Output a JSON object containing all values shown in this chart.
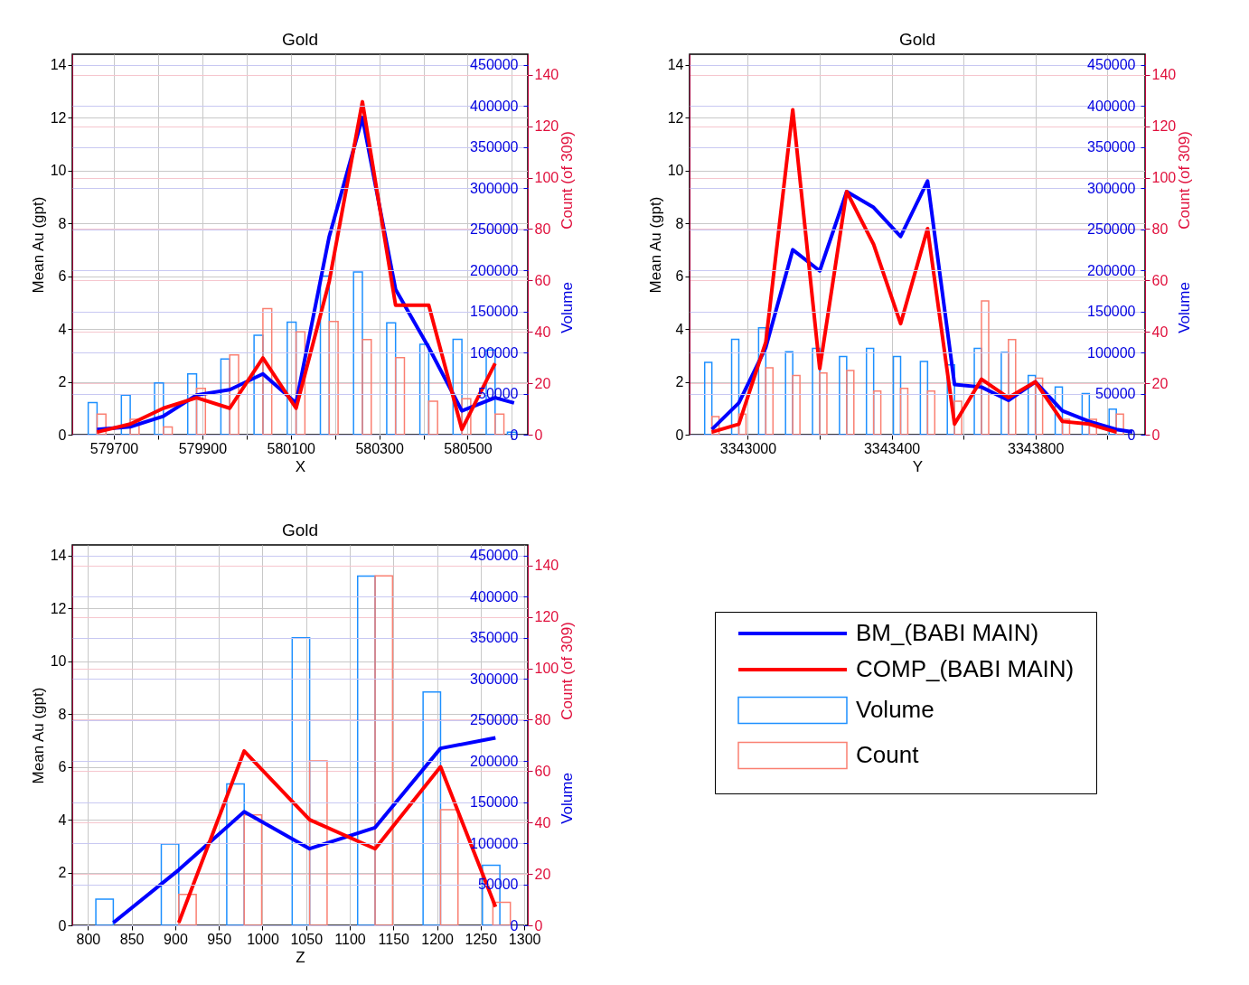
{
  "chart_data": [
    {
      "type": "line",
      "title": "Gold",
      "xlabel": "X",
      "ylabel": "Mean Au (gpt)",
      "y2label": "Volume",
      "y3label": "Count (of 309)",
      "xlim": [
        579606,
        580636
      ],
      "xticks": [
        579700,
        {
          "value": 579800,
          "label": null
        },
        579900,
        {
          "value": 580000,
          "label": null
        },
        580100,
        {
          "value": 580200,
          "label": null
        },
        580300,
        {
          "value": 580400,
          "label": null
        },
        580500,
        {
          "value": 580600,
          "label": null
        }
      ],
      "ylim": [
        0,
        14.4
      ],
      "yticks": [
        0,
        2,
        4,
        6,
        8,
        10,
        12,
        14
      ],
      "y2lim": [
        0,
        463000
      ],
      "y2ticks": [
        0,
        50000,
        100000,
        150000,
        200000,
        250000,
        300000,
        350000,
        400000,
        450000
      ],
      "y3lim": [
        0,
        148
      ],
      "y3ticks": [
        0,
        20,
        40,
        60,
        80,
        100,
        120,
        140
      ],
      "grid": true,
      "series": [
        {
          "type": "bar",
          "axis": "y2",
          "color": "#1e90ff",
          "x": [
            579652,
            579727,
            579802,
            579877,
            579952,
            580027,
            580102,
            580177,
            580252,
            580327,
            580402,
            580477,
            580552,
            580600
          ],
          "values": [
            39000,
            48000,
            63000,
            74000,
            92000,
            121000,
            137000,
            193000,
            198000,
            136000,
            110000,
            116000,
            103000,
            3000
          ]
        },
        {
          "type": "bar",
          "axis": "y3",
          "color": "#fa8072",
          "x": [
            579672,
            579747,
            579822,
            579897,
            579972,
            580047,
            580122,
            580197,
            580272,
            580347,
            580422,
            580497,
            580572
          ],
          "values": [
            8,
            6,
            3,
            18,
            31,
            49,
            40,
            44,
            37,
            30,
            13,
            14,
            8
          ]
        },
        {
          "type": "line",
          "color": "#0000ff",
          "x": [
            579662,
            579737,
            579812,
            579887,
            579962,
            580037,
            580112,
            580187,
            580262,
            580337,
            580412,
            580487,
            580562,
            580605
          ],
          "values": [
            0.2,
            0.3,
            0.7,
            1.5,
            1.7,
            2.3,
            1.2,
            7.5,
            12.0,
            5.5,
            3.3,
            0.9,
            1.4,
            1.2
          ]
        },
        {
          "type": "line",
          "color": "#ff0000",
          "x": [
            579662,
            579737,
            579812,
            579887,
            579962,
            580037,
            580112,
            580187,
            580262,
            580337,
            580412,
            580487,
            580562
          ],
          "values": [
            0.1,
            0.4,
            1.0,
            1.4,
            1.0,
            2.9,
            1.0,
            5.8,
            12.6,
            4.9,
            4.9,
            0.2,
            2.7
          ]
        }
      ]
    },
    {
      "type": "line",
      "title": "Gold",
      "xlabel": "Y",
      "ylabel": "Mean Au (gpt)",
      "y2label": "Volume",
      "y3label": "Count (of 309)",
      "xlim": [
        3342838,
        3344105
      ],
      "xticks": [
        3343000,
        {
          "value": 3343200,
          "label": null
        },
        3343400,
        {
          "value": 3343600,
          "label": null
        },
        3343800,
        {
          "value": 3344000,
          "label": null
        }
      ],
      "ylim": [
        0,
        14.4
      ],
      "yticks": [
        0,
        2,
        4,
        6,
        8,
        10,
        12,
        14
      ],
      "y2lim": [
        0,
        463000
      ],
      "y2ticks": [
        0,
        50000,
        100000,
        150000,
        200000,
        250000,
        300000,
        350000,
        400000,
        450000
      ],
      "y3lim": [
        0,
        148
      ],
      "y3ticks": [
        0,
        20,
        40,
        60,
        80,
        100,
        120,
        140
      ],
      "grid": true,
      "series": [
        {
          "type": "bar",
          "axis": "y2",
          "color": "#1e90ff",
          "x": [
            3342890,
            3342965,
            3343040,
            3343115,
            3343190,
            3343265,
            3343340,
            3343415,
            3343490,
            3343565,
            3343640,
            3343715,
            3343790,
            3343865,
            3343940,
            3344015
          ],
          "values": [
            88000,
            116000,
            130000,
            101000,
            105000,
            95000,
            105000,
            95000,
            89000,
            85000,
            105000,
            100000,
            72000,
            58000,
            50000,
            31000
          ]
        },
        {
          "type": "bar",
          "axis": "y3",
          "color": "#fa8072",
          "x": [
            3342910,
            3342985,
            3343060,
            3343135,
            3343210,
            3343285,
            3343360,
            3343435,
            3343510,
            3343585,
            3343660,
            3343735,
            3343810,
            3343885,
            3343960,
            3344035
          ],
          "values": [
            7,
            8,
            26,
            23,
            24,
            25,
            17,
            18,
            17,
            13,
            52,
            37,
            22,
            6,
            6,
            8
          ]
        },
        {
          "type": "line",
          "color": "#0000ff",
          "x": [
            3342900,
            3342975,
            3343050,
            3343125,
            3343200,
            3343275,
            3343350,
            3343425,
            3343500,
            3343575,
            3343650,
            3343725,
            3343800,
            3343875,
            3343950,
            3344025,
            3344070
          ],
          "values": [
            0.2,
            1.2,
            3.3,
            7.0,
            6.2,
            9.2,
            8.6,
            7.5,
            9.6,
            1.9,
            1.8,
            1.3,
            2.0,
            0.9,
            0.5,
            0.2,
            0.1
          ]
        },
        {
          "type": "line",
          "color": "#ff0000",
          "x": [
            3342900,
            3342975,
            3343050,
            3343125,
            3343200,
            3343275,
            3343350,
            3343425,
            3343500,
            3343575,
            3343650,
            3343725,
            3343800,
            3343875,
            3343950,
            3344025
          ],
          "values": [
            0.1,
            0.4,
            3.5,
            12.3,
            2.5,
            9.2,
            7.2,
            4.2,
            7.8,
            0.4,
            2.1,
            1.4,
            2.0,
            0.5,
            0.4,
            0.1
          ]
        }
      ]
    },
    {
      "type": "line",
      "title": "Gold",
      "xlabel": "Z",
      "ylabel": "Mean Au (gpt)",
      "y2label": "Volume",
      "y3label": "Count (of 309)",
      "xlim": [
        782,
        1304
      ],
      "xticks": [
        800,
        850,
        900,
        950,
        1000,
        1050,
        1100,
        1150,
        1200,
        1250,
        1300
      ],
      "ylim": [
        0,
        14.4
      ],
      "yticks": [
        0,
        2,
        4,
        6,
        8,
        10,
        12,
        14
      ],
      "y2lim": [
        0,
        463000
      ],
      "y2ticks": [
        0,
        50000,
        100000,
        150000,
        200000,
        250000,
        300000,
        350000,
        400000,
        450000
      ],
      "y3lim": [
        0,
        148
      ],
      "y3ticks": [
        0,
        20,
        40,
        60,
        80,
        100,
        120,
        140
      ],
      "grid": true,
      "legend": "right",
      "series": [
        {
          "type": "line",
          "name": "BM_(BABI MAIN)",
          "color": "#0000ff",
          "x": [
            829,
            904,
            979,
            1054,
            1129,
            1204,
            1267
          ],
          "values": [
            0.1,
            2.1,
            4.3,
            2.9,
            3.7,
            6.7,
            7.1
          ]
        },
        {
          "type": "line",
          "name": "COMP_(BABI MAIN)",
          "color": "#ff0000",
          "x": [
            904,
            979,
            1054,
            1129,
            1204,
            1267
          ],
          "values": [
            0.1,
            6.6,
            4.0,
            2.9,
            6.0,
            0.7
          ]
        },
        {
          "type": "bar",
          "axis": "y2",
          "name": "Volume",
          "color": "#1e90ff",
          "x": [
            819,
            894,
            969,
            1044,
            1119,
            1194,
            1262
          ],
          "values": [
            32000,
            99000,
            172000,
            350000,
            425000,
            284000,
            73000
          ]
        },
        {
          "type": "bar",
          "axis": "y3",
          "name": "Count",
          "color": "#fa8072",
          "x": [
            914,
            989,
            1064,
            1139,
            1214,
            1274
          ],
          "values": [
            12,
            43,
            64,
            136,
            45,
            9
          ]
        }
      ]
    }
  ]
}
